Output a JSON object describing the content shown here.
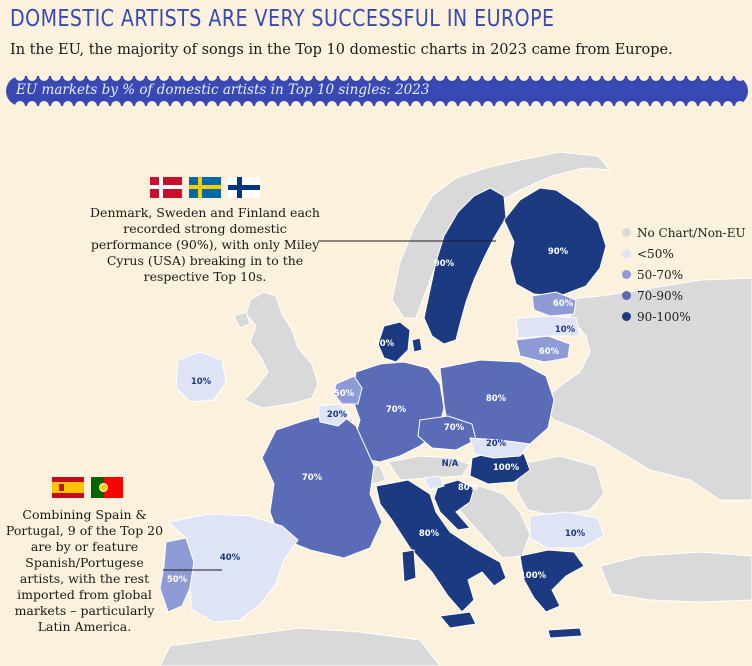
{
  "title": "DOMESTIC ARTISTS ARE VERY SUCCESSFUL IN EUROPE",
  "subtitle": "In the EU, the majority of songs in the Top 10 domestic charts in 2023 came from Europe.",
  "banner": "EU markets by % of domestic artists in Top 10 singles: 2023",
  "colors": {
    "background": "#fbf1dc",
    "accent": "#3949b3",
    "no_chart": "#d9d9d9",
    "lt50": "#dfe3f6",
    "50_70": "#8e9bd6",
    "70_90": "#5a6bb8",
    "90_100": "#1c3a82"
  },
  "legend": [
    {
      "label": "No Chart/Non-EU",
      "color": "#d9d9d9"
    },
    {
      "label": "<50%",
      "color": "#dfe3f6"
    },
    {
      "label": "50-70%",
      "color": "#8e9bd6"
    },
    {
      "label": "70-90%",
      "color": "#5a6bb8"
    },
    {
      "label": "90-100%",
      "color": "#1c3a82"
    }
  ],
  "callouts": {
    "nordic": "Denmark, Sweden and Finland each recorded strong domestic performance (90%), with only Miley Cyrus (USA) breaking in to the respective Top 10s.",
    "iberia": "Combining Spain & Portugal, 9 of the Top 20 are by or feature Spanish/Portugese artists, with the rest imported from global markets – particularly Latin America."
  },
  "flags": [
    "denmark-flag",
    "sweden-flag",
    "finland-flag",
    "spain-flag",
    "portugal-flag"
  ],
  "chart_data": {
    "type": "choropleth",
    "regions": [
      {
        "country": "Sweden",
        "value": "90%"
      },
      {
        "country": "Finland",
        "value": "90%"
      },
      {
        "country": "Denmark",
        "value": "90%"
      },
      {
        "country": "Estonia",
        "value": "60%"
      },
      {
        "country": "Latvia",
        "value": "10%"
      },
      {
        "country": "Lithuania",
        "value": "60%"
      },
      {
        "country": "Ireland",
        "value": "10%"
      },
      {
        "country": "Netherlands",
        "value": "50%"
      },
      {
        "country": "Belgium",
        "value": "20%"
      },
      {
        "country": "Germany",
        "value": "70%"
      },
      {
        "country": "Poland",
        "value": "80%"
      },
      {
        "country": "Czechia",
        "value": "70%"
      },
      {
        "country": "Slovakia",
        "value": "20%"
      },
      {
        "country": "Hungary",
        "value": "100%"
      },
      {
        "country": "Slovenia",
        "value": "N/A"
      },
      {
        "country": "Croatia",
        "value": "80%"
      },
      {
        "country": "France",
        "value": "70%"
      },
      {
        "country": "Italy",
        "value": "80%"
      },
      {
        "country": "Spain",
        "value": "40%"
      },
      {
        "country": "Portugal",
        "value": "50%"
      },
      {
        "country": "Bulgaria",
        "value": "10%"
      },
      {
        "country": "Greece",
        "value": "100%"
      }
    ]
  }
}
